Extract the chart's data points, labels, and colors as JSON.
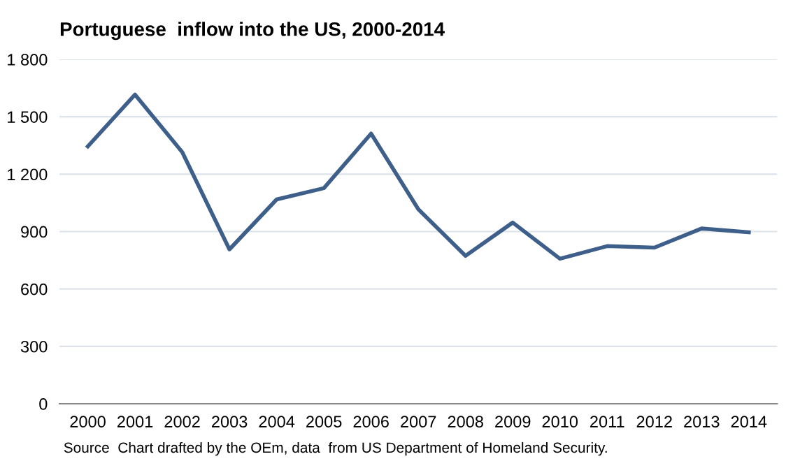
{
  "chart_data": {
    "type": "line",
    "title": "Portuguese  inflow into the US, 2000-2014",
    "categories": [
      "2000",
      "2001",
      "2002",
      "2003",
      "2004",
      "2005",
      "2006",
      "2007",
      "2008",
      "2009",
      "2010",
      "2011",
      "2012",
      "2013",
      "2014"
    ],
    "series": [
      {
        "color": "#3e5f8a",
        "values": [
          1345,
          1616,
          1315,
          807,
          1068,
          1127,
          1412,
          1017,
          773,
          947,
          758,
          824,
          816,
          916,
          896
        ]
      }
    ],
    "ylim": [
      0,
      1800
    ],
    "yticks": [
      0,
      300,
      600,
      900,
      {
        "value": 1200,
        "label": "1 200"
      },
      {
        "value": 1500,
        "label": "1 500"
      },
      {
        "value": 1800,
        "label": "1 800"
      }
    ],
    "grid": "y",
    "legend": false,
    "marker": "none",
    "line_style": "solid",
    "annotations": [
      "Source  Chart drafted by the OEm, data  from US Department of Homeland Security."
    ]
  }
}
